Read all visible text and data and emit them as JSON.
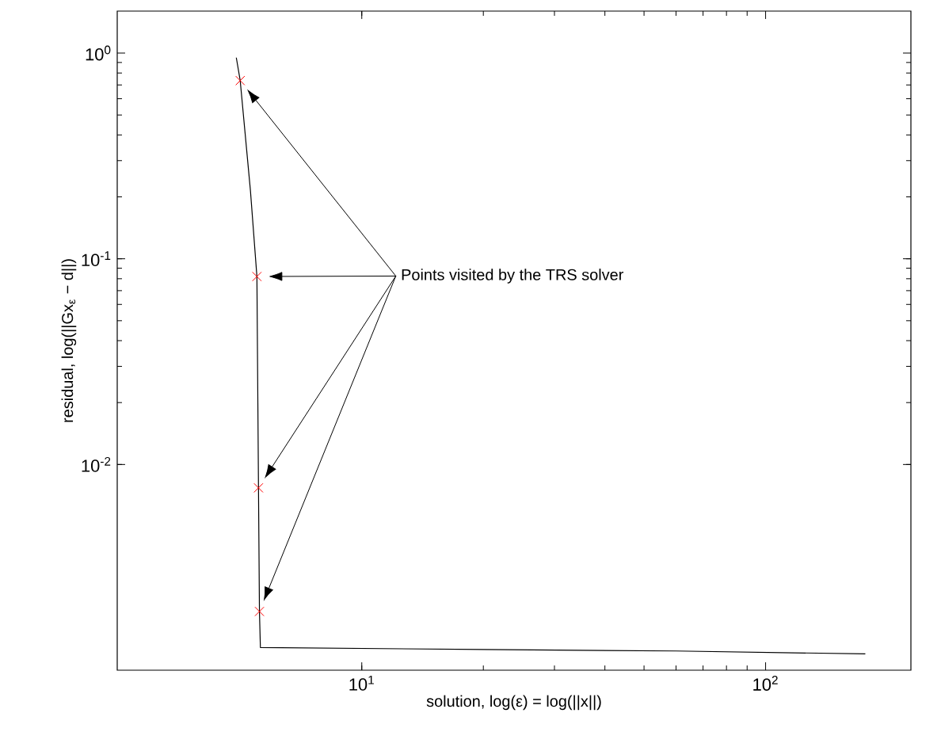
{
  "chart_data": {
    "type": "line",
    "log": "xy",
    "xlabel": "solution, log(ε) = log(||x||)",
    "ylabel": "residual, log(||Gx$_{ε}$ − d||)",
    "annotations": [
      "Points visited by the TRS solver"
    ],
    "xlim": [
      2.48,
      229
    ],
    "ylim": [
      0.001,
      1.6
    ],
    "xticks": [
      {
        "value": 10,
        "label": "10$^{1}$"
      },
      {
        "value": 100,
        "label": "10$^{2}$"
      }
    ],
    "yticks": [
      {
        "value": 0.01,
        "label": "10$^{-2}$"
      },
      {
        "value": 0.1,
        "label": "10$^{-1}$"
      },
      {
        "value": 1,
        "label": "10$^{0}$"
      }
    ],
    "series": [
      {
        "color": "#000000",
        "marker": "none",
        "line_style": "solid",
        "x": [
          4.89,
          5.0,
          5.3,
          5.5,
          5.55,
          5.58,
          5.61,
          20,
          60,
          176.6
        ],
        "values": [
          0.95,
          0.735,
          0.215,
          0.082,
          0.0077,
          0.00193,
          0.00129,
          0.00126,
          0.00124,
          0.0012
        ]
      },
      {
        "type": "scatter",
        "color": "#ff0000",
        "marker": "cross",
        "x": [
          5.0,
          5.5,
          5.55,
          5.58
        ],
        "values": [
          0.735,
          0.082,
          0.0077,
          0.00193
        ]
      }
    ]
  }
}
